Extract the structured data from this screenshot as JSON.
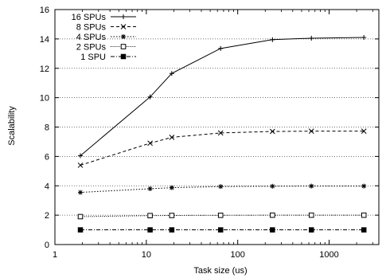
{
  "chart_data": {
    "type": "line",
    "title": "",
    "xlabel": "Task size (us)",
    "ylabel": "Scalability",
    "x_scale": "log",
    "xlim": [
      1,
      3500
    ],
    "ylim": [
      0,
      16
    ],
    "x_ticks": [
      1,
      10,
      100,
      1000
    ],
    "x_tick_labels": [
      "1",
      "10",
      "100",
      "1000"
    ],
    "y_ticks": [
      0,
      2,
      4,
      6,
      8,
      10,
      12,
      14,
      16
    ],
    "y_tick_labels": [
      "0",
      "2",
      "4",
      "6",
      "8",
      "10",
      "12",
      "14",
      "16"
    ],
    "grid": "horizontal dotted at y ticks",
    "legend_position": "top-left",
    "x": [
      1.9,
      11,
      19,
      65,
      240,
      640,
      2400
    ],
    "series": [
      {
        "name": "16 SPUs",
        "marker": "plus",
        "dash": "solid",
        "values": [
          6.05,
          10.05,
          11.65,
          13.35,
          13.95,
          14.05,
          14.1
        ]
      },
      {
        "name": "8 SPUs",
        "marker": "cross",
        "dash": "dashed",
        "values": [
          5.4,
          6.9,
          7.3,
          7.6,
          7.7,
          7.72,
          7.72
        ]
      },
      {
        "name": "4 SPUs",
        "marker": "star",
        "dash": "dotted",
        "values": [
          3.55,
          3.8,
          3.87,
          3.95,
          3.97,
          3.98,
          3.98
        ]
      },
      {
        "name": "2 SPUs",
        "marker": "open-square",
        "dash": "fine-dotted",
        "values": [
          1.9,
          1.97,
          1.98,
          1.99,
          2.0,
          2.0,
          2.0
        ]
      },
      {
        "name": "1 SPU",
        "marker": "filled-square",
        "dash": "dash-dot",
        "values": [
          1.0,
          1.0,
          1.0,
          1.0,
          1.0,
          1.0,
          1.0
        ]
      }
    ]
  }
}
